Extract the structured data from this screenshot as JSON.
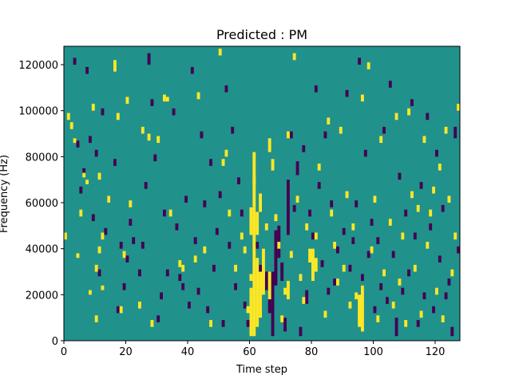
{
  "chart_data": {
    "type": "heatmap",
    "title": "Predicted : PM",
    "xlabel": "Time step",
    "ylabel": "Frequency (Hz)",
    "xlim": [
      0,
      128
    ],
    "ylim": [
      0,
      128000
    ],
    "grid": false,
    "x_ticks": [
      0,
      20,
      40,
      60,
      80,
      100,
      120
    ],
    "y_ticks": [
      0,
      20000,
      40000,
      60000,
      80000,
      100000,
      120000
    ],
    "y_tick_labels": [
      "0",
      "20000",
      "40000",
      "60000",
      "80000",
      "100000",
      "120000"
    ],
    "x_tick_labels": [
      "0",
      "20",
      "40",
      "60",
      "80",
      "100",
      "120"
    ],
    "value_levels": {
      "low": -1,
      "mid": 0,
      "high": 1
    },
    "colors": {
      "low": "#440154",
      "mid": "#21918c",
      "high": "#fde725",
      "frame": "#000000"
    },
    "background_value": 0,
    "cell_size": {
      "time_step": 1,
      "frequency_hz": 1000
    },
    "high_cells": [
      [
        0,
        44000,
        47000
      ],
      [
        1,
        96000,
        99000
      ],
      [
        2,
        92000,
        95000
      ],
      [
        3,
        86000,
        88000
      ],
      [
        4,
        36000,
        38000
      ],
      [
        5,
        54000,
        57000
      ],
      [
        6,
        71000,
        73000
      ],
      [
        7,
        68000,
        70000
      ],
      [
        8,
        20000,
        22000
      ],
      [
        9,
        100000,
        103000
      ],
      [
        10,
        30000,
        33000
      ],
      [
        10,
        8000,
        11000
      ],
      [
        11,
        70000,
        73000
      ],
      [
        11,
        38000,
        41000
      ],
      [
        12,
        44000,
        47000
      ],
      [
        12,
        22000,
        24000
      ],
      [
        14,
        60000,
        63000
      ],
      [
        16,
        117000,
        122000
      ],
      [
        17,
        96000,
        99000
      ],
      [
        18,
        12000,
        15000
      ],
      [
        19,
        36000,
        39000
      ],
      [
        20,
        103000,
        106000
      ],
      [
        21,
        58000,
        61000
      ],
      [
        24,
        14000,
        17000
      ],
      [
        25,
        90000,
        93000
      ],
      [
        27,
        87000,
        90000
      ],
      [
        28,
        6000,
        9000
      ],
      [
        30,
        86000,
        89000
      ],
      [
        32,
        104000,
        107000
      ],
      [
        33,
        104000,
        106000
      ],
      [
        34,
        54000,
        57000
      ],
      [
        37,
        32000,
        35000
      ],
      [
        38,
        30000,
        33000
      ],
      [
        42,
        34000,
        37000
      ],
      [
        43,
        105000,
        108000
      ],
      [
        45,
        38000,
        41000
      ],
      [
        47,
        6000,
        9000
      ],
      [
        50,
        124000,
        127000
      ],
      [
        51,
        76000,
        79000
      ],
      [
        52,
        80000,
        83000
      ],
      [
        53,
        54000,
        57000
      ],
      [
        55,
        30000,
        33000
      ],
      [
        57,
        44000,
        47000
      ],
      [
        58,
        38000,
        41000
      ],
      [
        59,
        12000,
        15000
      ],
      [
        60,
        26000,
        29000
      ],
      [
        60,
        20000,
        23000
      ],
      [
        61,
        68000,
        71000
      ],
      [
        62,
        14000,
        17000
      ],
      [
        63,
        56000,
        64000
      ],
      [
        64,
        28000,
        31000
      ],
      [
        65,
        48000,
        51000
      ],
      [
        66,
        82000,
        88000
      ],
      [
        67,
        74000,
        79000
      ],
      [
        68,
        52000,
        55000
      ],
      [
        69,
        40000,
        43000
      ],
      [
        70,
        8000,
        11000
      ],
      [
        71,
        20000,
        23000
      ],
      [
        72,
        88000,
        91000
      ],
      [
        73,
        36000,
        39000
      ],
      [
        74,
        122000,
        125000
      ],
      [
        75,
        60000,
        63000
      ],
      [
        76,
        26000,
        29000
      ],
      [
        77,
        16000,
        19000
      ],
      [
        78,
        48000,
        51000
      ],
      [
        79,
        34000,
        40000
      ],
      [
        80,
        30000,
        35000
      ],
      [
        81,
        44000,
        47000
      ],
      [
        82,
        74000,
        77000
      ],
      [
        84,
        10000,
        13000
      ],
      [
        85,
        94000,
        97000
      ],
      [
        86,
        54000,
        57000
      ],
      [
        87,
        40000,
        43000
      ],
      [
        88,
        24000,
        27000
      ],
      [
        89,
        90000,
        93000
      ],
      [
        90,
        30000,
        33000
      ],
      [
        91,
        62000,
        65000
      ],
      [
        92,
        14000,
        17000
      ],
      [
        93,
        48000,
        51000
      ],
      [
        94,
        18000,
        21000
      ],
      [
        96,
        104000,
        107000
      ],
      [
        98,
        118000,
        121000
      ],
      [
        99,
        38000,
        41000
      ],
      [
        100,
        60000,
        63000
      ],
      [
        101,
        8000,
        11000
      ],
      [
        102,
        86000,
        89000
      ],
      [
        103,
        28000,
        31000
      ],
      [
        105,
        50000,
        53000
      ],
      [
        106,
        14000,
        17000
      ],
      [
        107,
        96000,
        99000
      ],
      [
        108,
        24000,
        27000
      ],
      [
        109,
        44000,
        47000
      ],
      [
        110,
        6000,
        9000
      ],
      [
        111,
        98000,
        101000
      ],
      [
        112,
        62000,
        65000
      ],
      [
        113,
        30000,
        33000
      ],
      [
        114,
        56000,
        59000
      ],
      [
        115,
        10000,
        13000
      ],
      [
        116,
        86000,
        89000
      ],
      [
        117,
        40000,
        43000
      ],
      [
        118,
        54000,
        57000
      ],
      [
        119,
        64000,
        67000
      ],
      [
        120,
        20000,
        23000
      ],
      [
        121,
        74000,
        77000
      ],
      [
        122,
        8000,
        11000
      ],
      [
        123,
        90000,
        93000
      ],
      [
        124,
        60000,
        63000
      ],
      [
        125,
        28000,
        31000
      ],
      [
        126,
        44000,
        47000
      ],
      [
        127,
        100000,
        103000
      ]
    ],
    "high_bands": [
      [
        60,
        2000,
        20000
      ],
      [
        61,
        2000,
        58000
      ],
      [
        62,
        6000,
        36000
      ],
      [
        63,
        10000,
        30000
      ],
      [
        64,
        20000,
        40000
      ],
      [
        60,
        46000,
        58000
      ],
      [
        61,
        58000,
        82000
      ],
      [
        62,
        46000,
        56000
      ],
      [
        95,
        6000,
        20000
      ],
      [
        96,
        4000,
        24000
      ],
      [
        80,
        26000,
        40000
      ],
      [
        81,
        30000,
        36000
      ],
      [
        72,
        18000,
        26000
      ],
      [
        66,
        18000,
        30000
      ]
    ],
    "low_cells": [
      [
        3,
        120000,
        123000
      ],
      [
        4,
        84000,
        87000
      ],
      [
        5,
        64000,
        67000
      ],
      [
        6,
        72000,
        75000
      ],
      [
        7,
        116000,
        119000
      ],
      [
        8,
        86000,
        89000
      ],
      [
        9,
        52000,
        55000
      ],
      [
        10,
        80000,
        83000
      ],
      [
        11,
        28000,
        31000
      ],
      [
        12,
        98000,
        101000
      ],
      [
        13,
        46000,
        49000
      ],
      [
        14,
        60000,
        63000
      ],
      [
        16,
        76000,
        79000
      ],
      [
        17,
        12000,
        15000
      ],
      [
        18,
        40000,
        43000
      ],
      [
        19,
        22000,
        25000
      ],
      [
        20,
        34000,
        37000
      ],
      [
        21,
        50000,
        53000
      ],
      [
        22,
        42000,
        45000
      ],
      [
        24,
        28000,
        31000
      ],
      [
        25,
        40000,
        43000
      ],
      [
        26,
        66000,
        69000
      ],
      [
        27,
        120000,
        125000
      ],
      [
        28,
        102000,
        105000
      ],
      [
        29,
        78000,
        81000
      ],
      [
        30,
        8000,
        11000
      ],
      [
        31,
        18000,
        21000
      ],
      [
        32,
        54000,
        57000
      ],
      [
        33,
        28000,
        31000
      ],
      [
        35,
        98000,
        101000
      ],
      [
        36,
        48000,
        51000
      ],
      [
        37,
        26000,
        29000
      ],
      [
        38,
        22000,
        25000
      ],
      [
        39,
        60000,
        63000
      ],
      [
        40,
        14000,
        17000
      ],
      [
        41,
        116000,
        119000
      ],
      [
        42,
        42000,
        45000
      ],
      [
        43,
        20000,
        23000
      ],
      [
        44,
        88000,
        91000
      ],
      [
        45,
        58000,
        61000
      ],
      [
        46,
        12000,
        15000
      ],
      [
        47,
        76000,
        79000
      ],
      [
        48,
        30000,
        33000
      ],
      [
        49,
        46000,
        49000
      ],
      [
        50,
        62000,
        65000
      ],
      [
        51,
        6000,
        9000
      ],
      [
        52,
        108000,
        111000
      ],
      [
        53,
        40000,
        43000
      ],
      [
        54,
        90000,
        93000
      ],
      [
        55,
        22000,
        25000
      ],
      [
        56,
        68000,
        71000
      ],
      [
        57,
        54000,
        57000
      ],
      [
        58,
        14000,
        17000
      ],
      [
        59,
        6000,
        9000
      ],
      [
        62,
        40000,
        43000
      ],
      [
        63,
        30000,
        33000
      ],
      [
        65,
        22000,
        30000
      ],
      [
        66,
        12000,
        20000
      ],
      [
        67,
        2000,
        30000
      ],
      [
        68,
        24000,
        48000
      ],
      [
        69,
        36000,
        50000
      ],
      [
        70,
        26000,
        34000
      ],
      [
        71,
        4000,
        10000
      ],
      [
        72,
        46000,
        70000
      ],
      [
        73,
        88000,
        91000
      ],
      [
        74,
        56000,
        59000
      ],
      [
        75,
        72000,
        78000
      ],
      [
        76,
        2000,
        6000
      ],
      [
        77,
        82000,
        85000
      ],
      [
        78,
        16000,
        22000
      ],
      [
        79,
        54000,
        57000
      ],
      [
        80,
        44000,
        47000
      ],
      [
        81,
        108000,
        111000
      ],
      [
        82,
        66000,
        69000
      ],
      [
        83,
        32000,
        35000
      ],
      [
        84,
        88000,
        91000
      ],
      [
        85,
        20000,
        23000
      ],
      [
        86,
        58000,
        61000
      ],
      [
        87,
        24000,
        27000
      ],
      [
        88,
        38000,
        41000
      ],
      [
        90,
        46000,
        49000
      ],
      [
        91,
        106000,
        109000
      ],
      [
        92,
        30000,
        33000
      ],
      [
        93,
        42000,
        45000
      ],
      [
        94,
        58000,
        61000
      ],
      [
        95,
        120000,
        123000
      ],
      [
        96,
        26000,
        29000
      ],
      [
        97,
        80000,
        83000
      ],
      [
        98,
        36000,
        39000
      ],
      [
        99,
        50000,
        53000
      ],
      [
        100,
        12000,
        15000
      ],
      [
        101,
        42000,
        45000
      ],
      [
        102,
        22000,
        25000
      ],
      [
        103,
        90000,
        93000
      ],
      [
        104,
        16000,
        19000
      ],
      [
        105,
        110000,
        113000
      ],
      [
        106,
        36000,
        39000
      ],
      [
        107,
        2000,
        10000
      ],
      [
        108,
        70000,
        73000
      ],
      [
        109,
        20000,
        23000
      ],
      [
        110,
        54000,
        57000
      ],
      [
        111,
        28000,
        31000
      ],
      [
        112,
        102000,
        105000
      ],
      [
        113,
        44000,
        47000
      ],
      [
        114,
        6000,
        9000
      ],
      [
        115,
        66000,
        69000
      ],
      [
        116,
        18000,
        21000
      ],
      [
        117,
        96000,
        99000
      ],
      [
        118,
        48000,
        51000
      ],
      [
        119,
        12000,
        15000
      ],
      [
        120,
        80000,
        83000
      ],
      [
        121,
        34000,
        37000
      ],
      [
        122,
        56000,
        59000
      ],
      [
        123,
        18000,
        21000
      ],
      [
        124,
        24000,
        27000
      ],
      [
        125,
        2000,
        6000
      ],
      [
        126,
        88000,
        93000
      ],
      [
        127,
        38000,
        41000
      ]
    ]
  }
}
